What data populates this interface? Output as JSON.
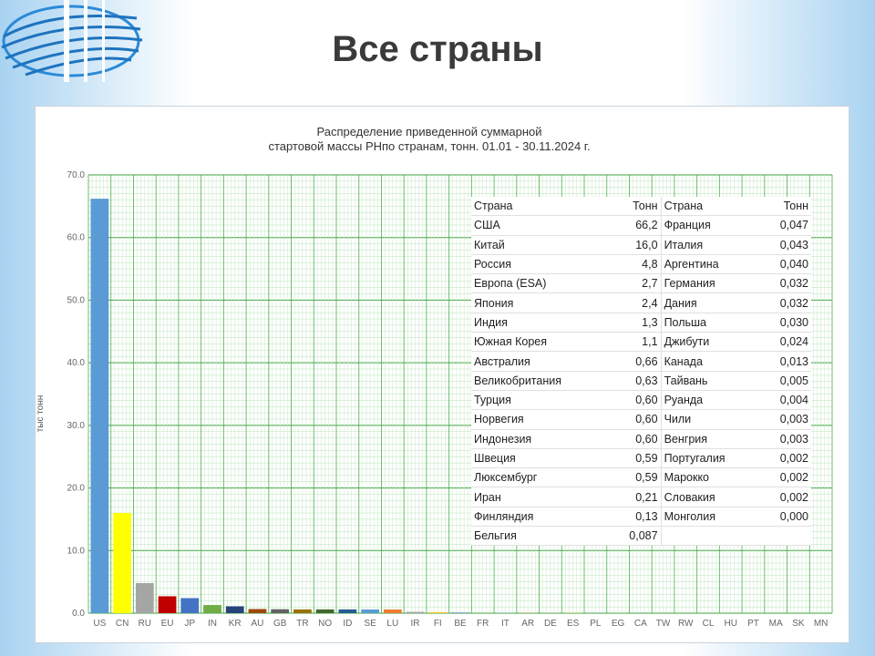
{
  "slide": {
    "title": "Все страны"
  },
  "chart_data": {
    "type": "bar",
    "title_lines": [
      "Распределение приведенной суммарной",
      "стартовой массы РНпо странам, тонн. 01.01 - 30.11.2024 г."
    ],
    "ylabel": "тыс тонн",
    "xlabel": "",
    "ylim": [
      0,
      70
    ],
    "yticks": [
      "0.0",
      "10.0",
      "20.0",
      "30.0",
      "40.0",
      "50.0",
      "60.0",
      "70.0"
    ],
    "grid": true,
    "categories": [
      "US",
      "CN",
      "RU",
      "EU",
      "JP",
      "IN",
      "KR",
      "AU",
      "GB",
      "TR",
      "NO",
      "ID",
      "SE",
      "LU",
      "IR",
      "FI",
      "BE",
      "FR",
      "IT",
      "AR",
      "DE",
      "ES",
      "PL",
      "EG",
      "CA",
      "TW",
      "RW",
      "CL",
      "HU",
      "PT",
      "MA",
      "SK",
      "MN"
    ],
    "values": [
      66.2,
      16.0,
      4.8,
      2.7,
      2.4,
      1.3,
      1.1,
      0.66,
      0.63,
      0.6,
      0.6,
      0.6,
      0.59,
      0.59,
      0.21,
      0.13,
      0.087,
      0.047,
      0.043,
      0.04,
      0.032,
      0.032,
      0.03,
      0.024,
      0.013,
      0.005,
      0.004,
      0.003,
      0.003,
      0.002,
      0.002,
      0.002,
      0.0
    ],
    "colors": [
      "#5b9bd5",
      "#ffff00",
      "#a5a5a5",
      "#c00000",
      "#4472c4",
      "#70ad47",
      "#264478",
      "#9e480e",
      "#636363",
      "#997300",
      "#43682b",
      "#255e91",
      "#5b9bd5",
      "#ed7d31",
      "#a5a5a5",
      "#ffc000",
      "#4472c4",
      "#70ad47",
      "#7cafdd",
      "#f1975a",
      "#b7b7b7",
      "#ffcd33",
      "#698ed0",
      "#8cc168",
      "#327dc2",
      "#d26012",
      "#848484",
      "#cc9a00",
      "#335aa1",
      "#5a8b39",
      "#2e75b6",
      "#c55a11",
      "#7f7f7f"
    ]
  },
  "table": {
    "header": [
      "Страна",
      "Тонн",
      "Страна",
      "Тонн"
    ],
    "rows": [
      [
        "США",
        "66,2",
        "Франция",
        "0,047"
      ],
      [
        "Китай",
        "16,0",
        "Италия",
        "0,043"
      ],
      [
        "Россия",
        "4,8",
        "Аргентина",
        "0,040"
      ],
      [
        "Европа (ESA)",
        "2,7",
        "Германия",
        "0,032"
      ],
      [
        "Япония",
        "2,4",
        "Дания",
        "0,032"
      ],
      [
        "Индия",
        "1,3",
        "Польша",
        "0,030"
      ],
      [
        "Южная Корея",
        "1,1",
        "Джибути",
        "0,024"
      ],
      [
        "Австралия",
        "0,66",
        "Канада",
        "0,013"
      ],
      [
        "Великобритания",
        "0,63",
        "Тайвань",
        "0,005"
      ],
      [
        "Турция",
        "0,60",
        "Руанда",
        "0,004"
      ],
      [
        "Норвегия",
        "0,60",
        "Чили",
        "0,003"
      ],
      [
        "Индонезия",
        "0,60",
        "Венгрия",
        "0,003"
      ],
      [
        "Швеция",
        "0,59",
        "Португалия",
        "0,002"
      ],
      [
        "Люксембург",
        "0,59",
        "Марокко",
        "0,002"
      ],
      [
        "Иран",
        "0,21",
        "Словакия",
        "0,002"
      ],
      [
        "Финляндия",
        "0,13",
        "Монголия",
        "0,000"
      ],
      [
        "Бельгия",
        "0,087",
        "",
        ""
      ]
    ]
  }
}
